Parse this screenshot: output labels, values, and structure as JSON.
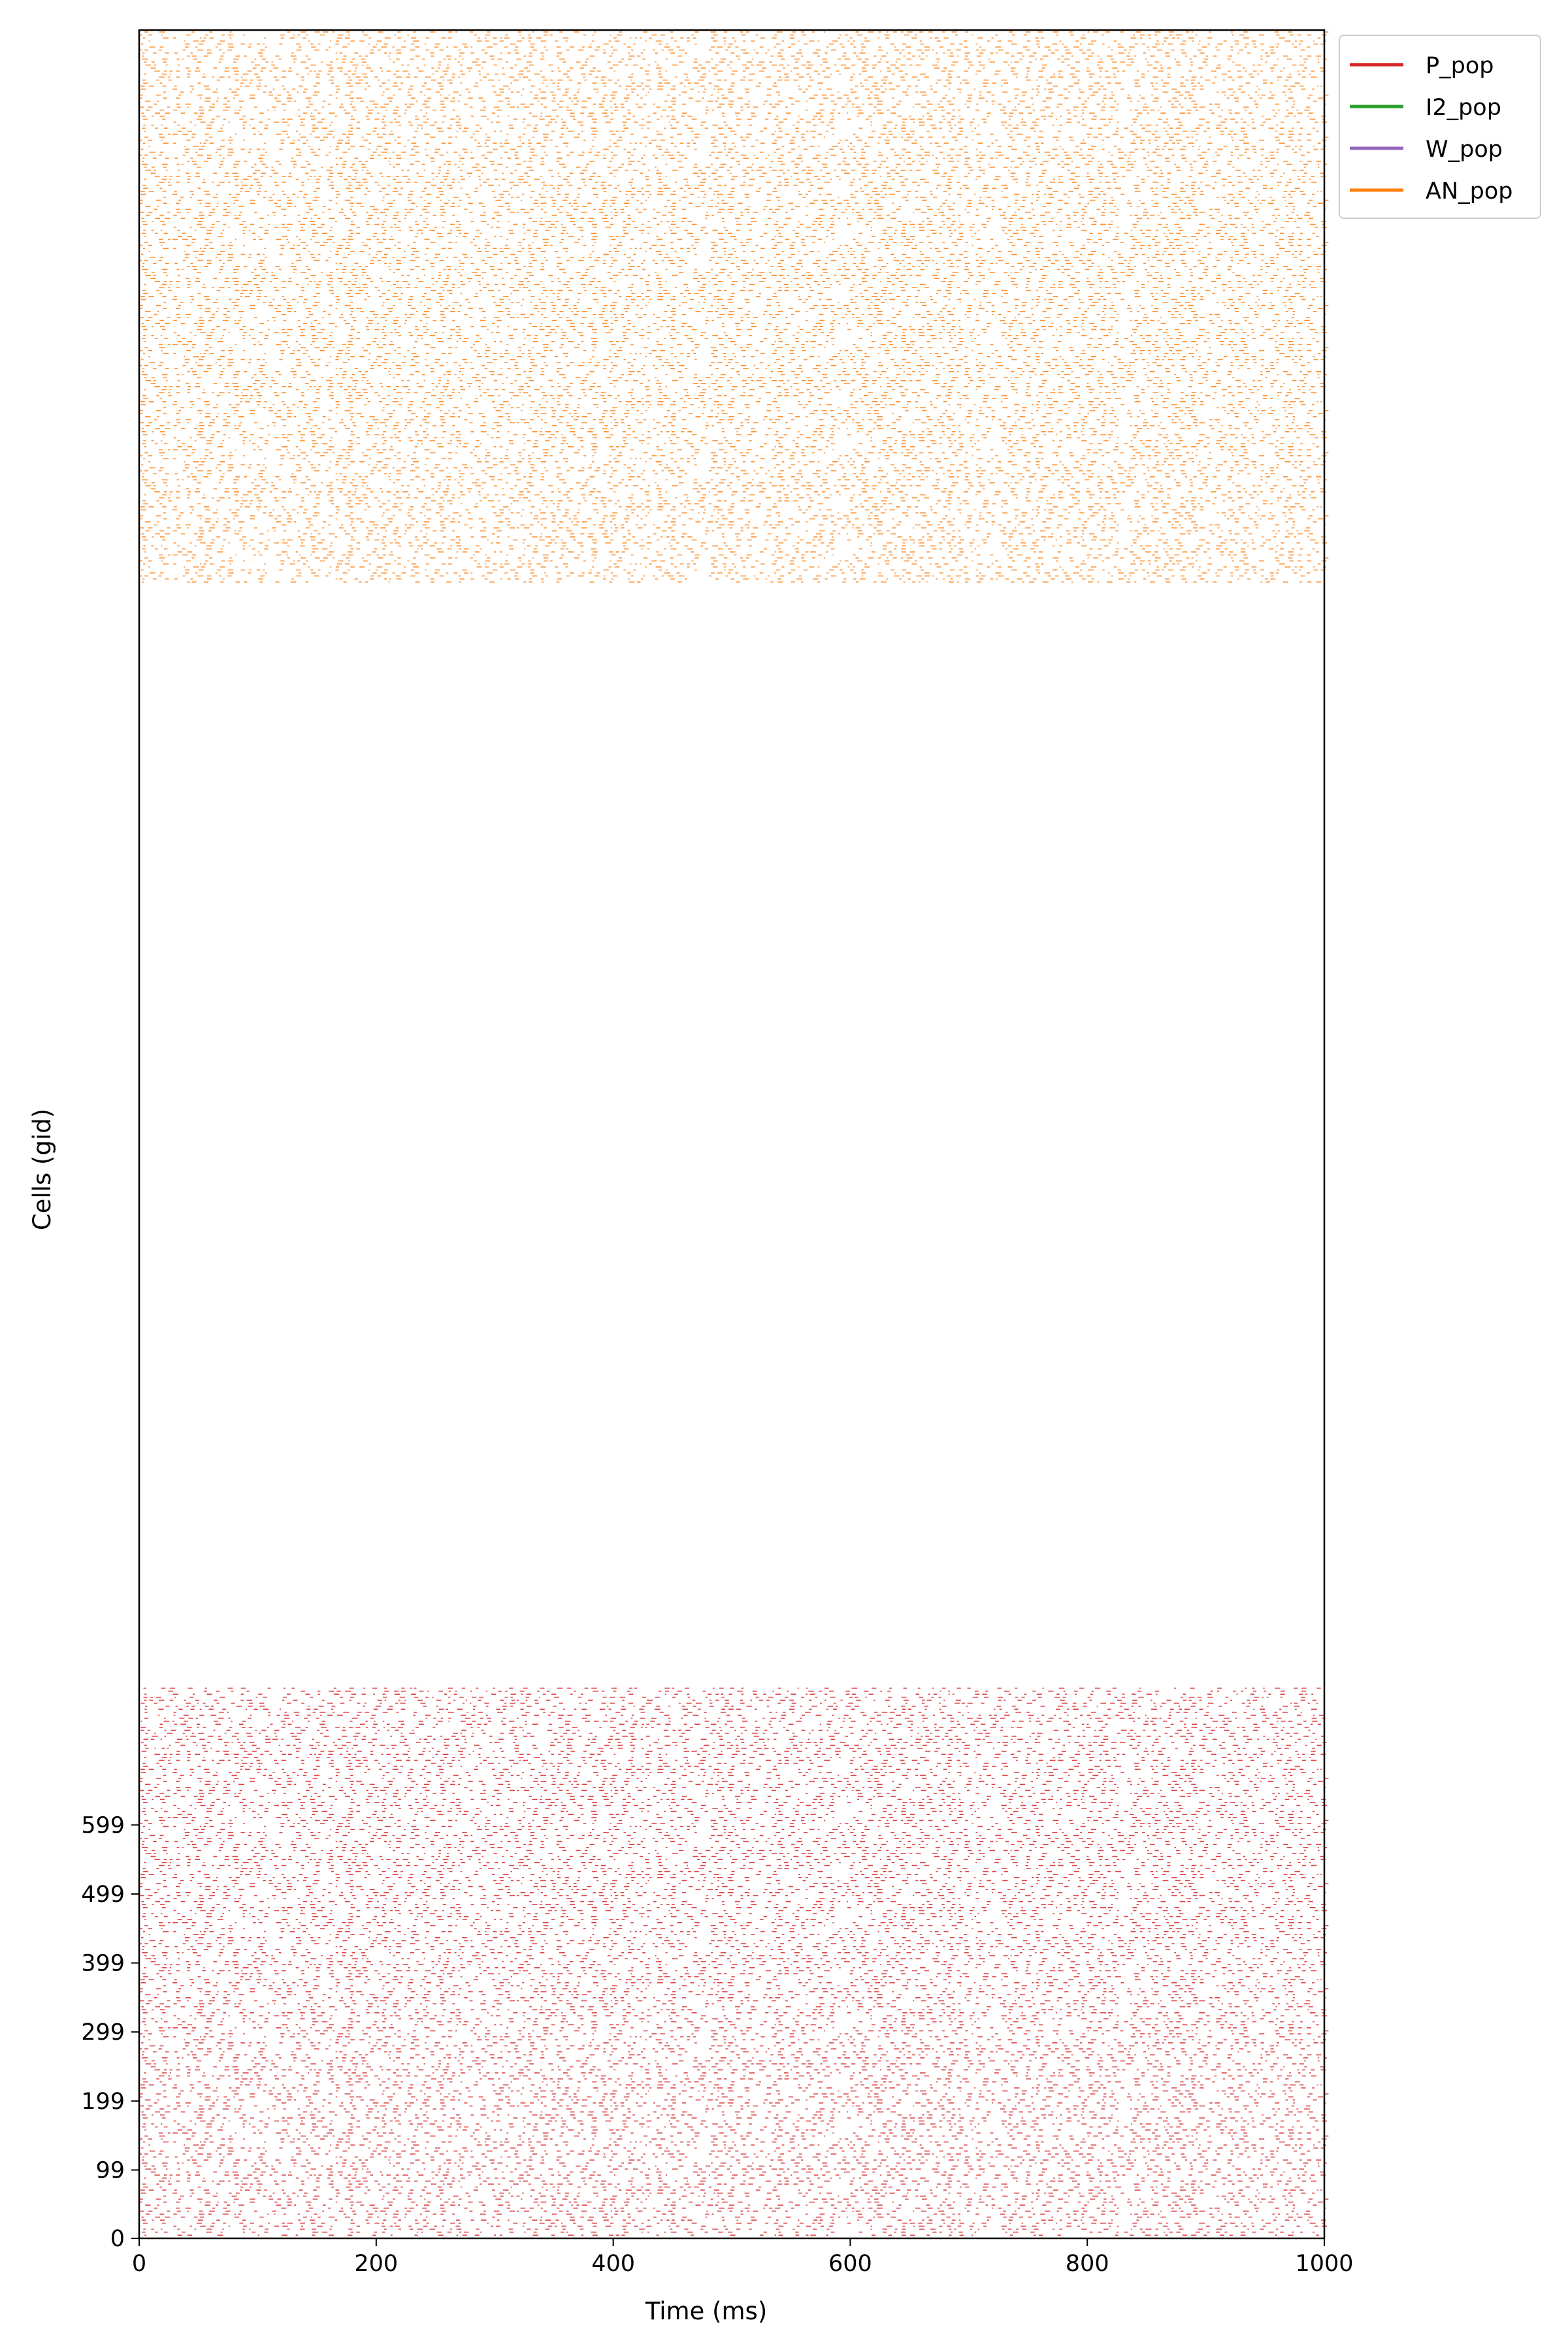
{
  "chart_data": {
    "type": "scatter",
    "xlabel": "Time (ms)",
    "ylabel": "Cells (gid)",
    "xlim": [
      0,
      1000
    ],
    "ylim": [
      0,
      3200
    ],
    "x_ticks": [
      {
        "value": 0,
        "label": "0"
      },
      {
        "value": 200,
        "label": "200"
      },
      {
        "value": 400,
        "label": "400"
      },
      {
        "value": 600,
        "label": "600"
      },
      {
        "value": 800,
        "label": "800"
      },
      {
        "value": 1000,
        "label": "1000"
      }
    ],
    "y_ticks": [
      {
        "value": 0,
        "label": "0"
      },
      {
        "value": 99,
        "label": "99"
      },
      {
        "value": 199,
        "label": "199"
      },
      {
        "value": 299,
        "label": "299"
      },
      {
        "value": 399,
        "label": "399"
      },
      {
        "value": 499,
        "label": "499"
      },
      {
        "value": 599,
        "label": "599"
      }
    ],
    "grid": false,
    "legend_position": "outside-top-right",
    "series": [
      {
        "name": "P_pop",
        "color": "#d62728",
        "gid_range": [
          0,
          800
        ],
        "time_range": [
          0,
          1000
        ]
      },
      {
        "name": "I2_pop",
        "color": "#2ca02c"
      },
      {
        "name": "W_pop",
        "color": "#9467bd"
      },
      {
        "name": "AN_pop",
        "color": "#ff7f0e",
        "gid_range": [
          2400,
          3200
        ],
        "time_range": [
          0,
          1000
        ]
      }
    ]
  }
}
